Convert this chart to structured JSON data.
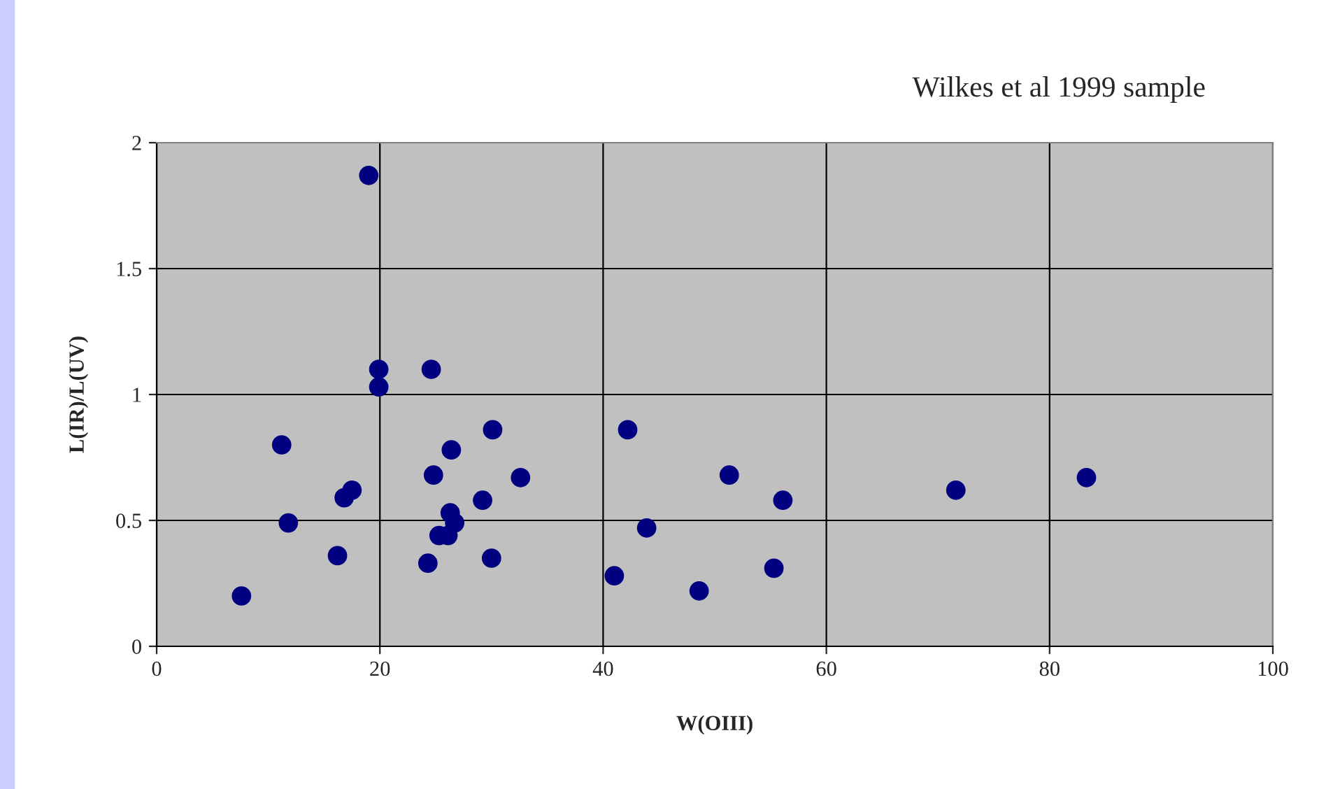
{
  "chart_data": {
    "type": "scatter",
    "title": "Wilkes et al 1999 sample",
    "xlabel": "W(OIII)",
    "ylabel": "L(IR)/L(UV)",
    "x": [
      7.6,
      11.8,
      11.2,
      16.2,
      16.8,
      17.5,
      19.0,
      19.9,
      19.9,
      24.3,
      24.6,
      24.8,
      25.3,
      26.1,
      26.3,
      26.4,
      26.7,
      29.2,
      30.0,
      30.1,
      32.6,
      41.0,
      42.2,
      43.9,
      48.6,
      51.3,
      55.3,
      56.1,
      71.6,
      83.3
    ],
    "series": [
      {
        "color": "#000080",
        "values": [
          0.2,
          0.49,
          0.8,
          0.36,
          0.59,
          0.62,
          1.87,
          1.1,
          1.03,
          0.33,
          1.1,
          0.68,
          0.44,
          0.44,
          0.53,
          0.78,
          0.49,
          0.58,
          0.35,
          0.86,
          0.67,
          0.28,
          0.86,
          0.47,
          0.22,
          0.68,
          0.31,
          0.58,
          0.62,
          0.67
        ]
      }
    ],
    "xlim": [
      0,
      100
    ],
    "xticks": [
      0,
      20,
      40,
      60,
      80,
      100
    ],
    "ylim": [
      0,
      2
    ],
    "yticks": [
      0,
      0.5,
      1,
      1.5,
      2
    ],
    "grid": true,
    "marker": "circle",
    "legend": false
  }
}
